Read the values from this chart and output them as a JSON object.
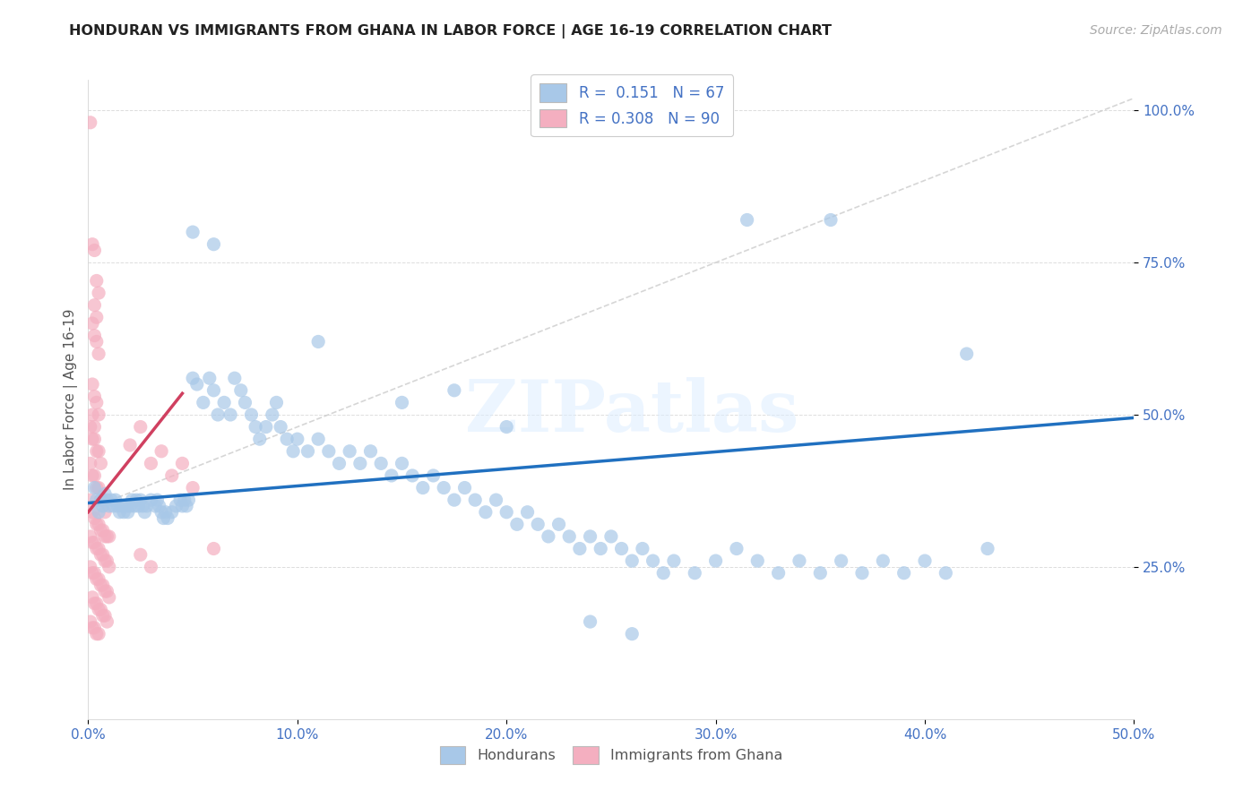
{
  "title": "HONDURAN VS IMMIGRANTS FROM GHANA IN LABOR FORCE | AGE 16-19 CORRELATION CHART",
  "source": "Source: ZipAtlas.com",
  "ylabel": "In Labor Force | Age 16-19",
  "xlim": [
    0.0,
    0.5
  ],
  "ylim": [
    0.0,
    1.05
  ],
  "xtick_vals": [
    0.0,
    0.1,
    0.2,
    0.3,
    0.4,
    0.5
  ],
  "xtick_labels": [
    "0.0%",
    "10.0%",
    "20.0%",
    "30.0%",
    "40.0%",
    "50.0%"
  ],
  "ytick_vals": [
    0.25,
    0.5,
    0.75,
    1.0
  ],
  "ytick_labels": [
    "25.0%",
    "50.0%",
    "75.0%",
    "100.0%"
  ],
  "watermark": "ZIPatlas",
  "legend_r1": "R =  0.151   N = 67",
  "legend_r2": "R = 0.308   N = 90",
  "blue_color": "#a8c8e8",
  "pink_color": "#f4afc0",
  "trend_blue": "#2070c0",
  "trend_pink": "#d04060",
  "ref_line_color": "#cccccc",
  "blue_scatter": [
    [
      0.003,
      0.38
    ],
    [
      0.004,
      0.36
    ],
    [
      0.005,
      0.34
    ],
    [
      0.006,
      0.36
    ],
    [
      0.007,
      0.35
    ],
    [
      0.008,
      0.37
    ],
    [
      0.009,
      0.36
    ],
    [
      0.01,
      0.35
    ],
    [
      0.011,
      0.36
    ],
    [
      0.012,
      0.35
    ],
    [
      0.013,
      0.36
    ],
    [
      0.014,
      0.35
    ],
    [
      0.015,
      0.34
    ],
    [
      0.016,
      0.35
    ],
    [
      0.017,
      0.34
    ],
    [
      0.018,
      0.35
    ],
    [
      0.019,
      0.34
    ],
    [
      0.02,
      0.35
    ],
    [
      0.021,
      0.36
    ],
    [
      0.022,
      0.35
    ],
    [
      0.023,
      0.36
    ],
    [
      0.024,
      0.35
    ],
    [
      0.025,
      0.36
    ],
    [
      0.026,
      0.35
    ],
    [
      0.027,
      0.34
    ],
    [
      0.028,
      0.35
    ],
    [
      0.03,
      0.36
    ],
    [
      0.032,
      0.35
    ],
    [
      0.033,
      0.36
    ],
    [
      0.034,
      0.35
    ],
    [
      0.035,
      0.34
    ],
    [
      0.036,
      0.33
    ],
    [
      0.037,
      0.34
    ],
    [
      0.038,
      0.33
    ],
    [
      0.04,
      0.34
    ],
    [
      0.042,
      0.35
    ],
    [
      0.044,
      0.36
    ],
    [
      0.045,
      0.35
    ],
    [
      0.046,
      0.36
    ],
    [
      0.047,
      0.35
    ],
    [
      0.048,
      0.36
    ],
    [
      0.05,
      0.56
    ],
    [
      0.052,
      0.55
    ],
    [
      0.055,
      0.52
    ],
    [
      0.058,
      0.56
    ],
    [
      0.06,
      0.54
    ],
    [
      0.062,
      0.5
    ],
    [
      0.065,
      0.52
    ],
    [
      0.068,
      0.5
    ],
    [
      0.07,
      0.56
    ],
    [
      0.073,
      0.54
    ],
    [
      0.075,
      0.52
    ],
    [
      0.078,
      0.5
    ],
    [
      0.08,
      0.48
    ],
    [
      0.082,
      0.46
    ],
    [
      0.085,
      0.48
    ],
    [
      0.088,
      0.5
    ],
    [
      0.09,
      0.52
    ],
    [
      0.092,
      0.48
    ],
    [
      0.095,
      0.46
    ],
    [
      0.098,
      0.44
    ],
    [
      0.1,
      0.46
    ],
    [
      0.105,
      0.44
    ],
    [
      0.11,
      0.46
    ],
    [
      0.115,
      0.44
    ],
    [
      0.12,
      0.42
    ],
    [
      0.125,
      0.44
    ],
    [
      0.13,
      0.42
    ],
    [
      0.135,
      0.44
    ],
    [
      0.14,
      0.42
    ],
    [
      0.145,
      0.4
    ],
    [
      0.15,
      0.42
    ],
    [
      0.155,
      0.4
    ],
    [
      0.16,
      0.38
    ],
    [
      0.165,
      0.4
    ],
    [
      0.17,
      0.38
    ],
    [
      0.175,
      0.36
    ],
    [
      0.18,
      0.38
    ],
    [
      0.185,
      0.36
    ],
    [
      0.19,
      0.34
    ],
    [
      0.195,
      0.36
    ],
    [
      0.2,
      0.34
    ],
    [
      0.205,
      0.32
    ],
    [
      0.21,
      0.34
    ],
    [
      0.215,
      0.32
    ],
    [
      0.22,
      0.3
    ],
    [
      0.225,
      0.32
    ],
    [
      0.23,
      0.3
    ],
    [
      0.235,
      0.28
    ],
    [
      0.24,
      0.3
    ],
    [
      0.245,
      0.28
    ],
    [
      0.25,
      0.3
    ],
    [
      0.255,
      0.28
    ],
    [
      0.26,
      0.26
    ],
    [
      0.265,
      0.28
    ],
    [
      0.27,
      0.26
    ],
    [
      0.275,
      0.24
    ],
    [
      0.28,
      0.26
    ],
    [
      0.29,
      0.24
    ],
    [
      0.3,
      0.26
    ],
    [
      0.31,
      0.28
    ],
    [
      0.32,
      0.26
    ],
    [
      0.33,
      0.24
    ],
    [
      0.34,
      0.26
    ],
    [
      0.35,
      0.24
    ],
    [
      0.36,
      0.26
    ],
    [
      0.37,
      0.24
    ],
    [
      0.38,
      0.26
    ],
    [
      0.39,
      0.24
    ],
    [
      0.4,
      0.26
    ],
    [
      0.41,
      0.24
    ],
    [
      0.05,
      0.8
    ],
    [
      0.06,
      0.78
    ],
    [
      0.11,
      0.62
    ],
    [
      0.15,
      0.52
    ],
    [
      0.175,
      0.54
    ],
    [
      0.2,
      0.48
    ],
    [
      0.24,
      0.16
    ],
    [
      0.26,
      0.14
    ],
    [
      0.315,
      0.82
    ],
    [
      0.355,
      0.82
    ],
    [
      0.42,
      0.6
    ],
    [
      0.43,
      0.28
    ]
  ],
  "pink_scatter": [
    [
      0.001,
      0.98
    ],
    [
      0.002,
      0.78
    ],
    [
      0.003,
      0.77
    ],
    [
      0.004,
      0.72
    ],
    [
      0.005,
      0.7
    ],
    [
      0.003,
      0.68
    ],
    [
      0.004,
      0.66
    ],
    [
      0.002,
      0.65
    ],
    [
      0.003,
      0.63
    ],
    [
      0.004,
      0.62
    ],
    [
      0.005,
      0.6
    ],
    [
      0.002,
      0.55
    ],
    [
      0.003,
      0.53
    ],
    [
      0.004,
      0.52
    ],
    [
      0.005,
      0.5
    ],
    [
      0.002,
      0.5
    ],
    [
      0.003,
      0.48
    ],
    [
      0.001,
      0.48
    ],
    [
      0.002,
      0.46
    ],
    [
      0.003,
      0.46
    ],
    [
      0.004,
      0.44
    ],
    [
      0.005,
      0.44
    ],
    [
      0.006,
      0.42
    ],
    [
      0.001,
      0.42
    ],
    [
      0.002,
      0.4
    ],
    [
      0.003,
      0.4
    ],
    [
      0.004,
      0.38
    ],
    [
      0.005,
      0.38
    ],
    [
      0.006,
      0.36
    ],
    [
      0.007,
      0.36
    ],
    [
      0.008,
      0.34
    ],
    [
      0.001,
      0.36
    ],
    [
      0.002,
      0.34
    ],
    [
      0.003,
      0.33
    ],
    [
      0.004,
      0.32
    ],
    [
      0.005,
      0.32
    ],
    [
      0.006,
      0.31
    ],
    [
      0.007,
      0.31
    ],
    [
      0.008,
      0.3
    ],
    [
      0.009,
      0.3
    ],
    [
      0.01,
      0.3
    ],
    [
      0.001,
      0.3
    ],
    [
      0.002,
      0.29
    ],
    [
      0.003,
      0.29
    ],
    [
      0.004,
      0.28
    ],
    [
      0.005,
      0.28
    ],
    [
      0.006,
      0.27
    ],
    [
      0.007,
      0.27
    ],
    [
      0.008,
      0.26
    ],
    [
      0.009,
      0.26
    ],
    [
      0.01,
      0.25
    ],
    [
      0.001,
      0.25
    ],
    [
      0.002,
      0.24
    ],
    [
      0.003,
      0.24
    ],
    [
      0.004,
      0.23
    ],
    [
      0.005,
      0.23
    ],
    [
      0.006,
      0.22
    ],
    [
      0.007,
      0.22
    ],
    [
      0.008,
      0.21
    ],
    [
      0.009,
      0.21
    ],
    [
      0.01,
      0.2
    ],
    [
      0.002,
      0.2
    ],
    [
      0.003,
      0.19
    ],
    [
      0.004,
      0.19
    ],
    [
      0.005,
      0.18
    ],
    [
      0.006,
      0.18
    ],
    [
      0.007,
      0.17
    ],
    [
      0.008,
      0.17
    ],
    [
      0.009,
      0.16
    ],
    [
      0.001,
      0.16
    ],
    [
      0.002,
      0.15
    ],
    [
      0.003,
      0.15
    ],
    [
      0.004,
      0.14
    ],
    [
      0.005,
      0.14
    ],
    [
      0.02,
      0.45
    ],
    [
      0.025,
      0.48
    ],
    [
      0.03,
      0.42
    ],
    [
      0.035,
      0.44
    ],
    [
      0.04,
      0.4
    ],
    [
      0.045,
      0.42
    ],
    [
      0.05,
      0.38
    ],
    [
      0.06,
      0.28
    ],
    [
      0.025,
      0.27
    ],
    [
      0.03,
      0.25
    ]
  ],
  "blue_trend_x": [
    0.0,
    0.5
  ],
  "blue_trend_y": [
    0.355,
    0.495
  ],
  "pink_trend_x": [
    0.0,
    0.045
  ],
  "pink_trend_y": [
    0.34,
    0.535
  ],
  "ref_line_x": [
    0.0,
    0.5
  ],
  "ref_line_y": [
    0.345,
    1.02
  ]
}
